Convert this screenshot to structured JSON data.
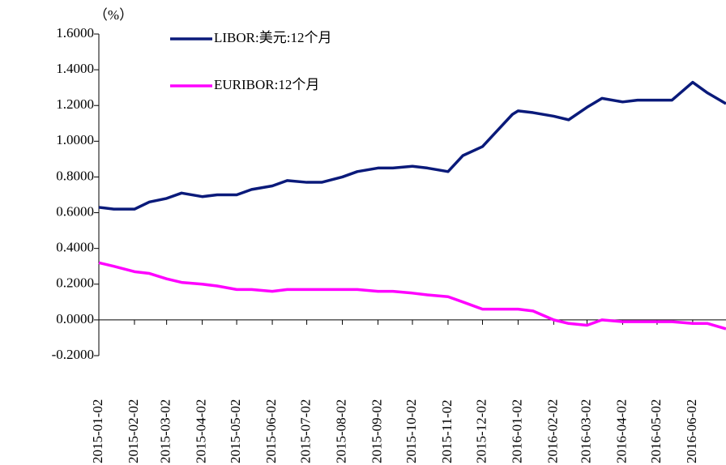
{
  "chart_data": {
    "type": "line",
    "y_label": "（%）",
    "x": [
      "2015-01-02",
      "2015-01-15",
      "2015-02-02",
      "2015-02-15",
      "2015-03-02",
      "2015-03-15",
      "2015-04-02",
      "2015-04-15",
      "2015-05-02",
      "2015-05-15",
      "2015-06-02",
      "2015-06-15",
      "2015-07-02",
      "2015-07-15",
      "2015-08-02",
      "2015-08-15",
      "2015-09-02",
      "2015-09-15",
      "2015-10-02",
      "2015-10-15",
      "2015-11-02",
      "2015-11-15",
      "2015-12-02",
      "2015-12-15",
      "2015-12-28",
      "2016-01-02",
      "2016-01-15",
      "2016-02-02",
      "2016-02-15",
      "2016-03-02",
      "2016-03-15",
      "2016-04-02",
      "2016-04-15",
      "2016-05-02",
      "2016-05-15",
      "2016-06-02",
      "2016-06-15",
      "2016-07-01"
    ],
    "series": [
      {
        "name": "LIBOR:美元:12个月",
        "color": "#0a1a7a",
        "values": [
          0.63,
          0.62,
          0.62,
          0.66,
          0.68,
          0.71,
          0.69,
          0.7,
          0.7,
          0.73,
          0.75,
          0.78,
          0.77,
          0.77,
          0.8,
          0.83,
          0.85,
          0.85,
          0.86,
          0.85,
          0.83,
          0.92,
          0.97,
          1.06,
          1.15,
          1.17,
          1.16,
          1.14,
          1.12,
          1.19,
          1.24,
          1.22,
          1.23,
          1.23,
          1.23,
          1.33,
          1.27,
          1.21
        ]
      },
      {
        "name": "EURIBOR:12个月",
        "color": "#ff00ff",
        "values": [
          0.32,
          0.3,
          0.27,
          0.26,
          0.23,
          0.21,
          0.2,
          0.19,
          0.17,
          0.17,
          0.16,
          0.17,
          0.17,
          0.17,
          0.17,
          0.17,
          0.16,
          0.16,
          0.15,
          0.14,
          0.13,
          0.1,
          0.06,
          0.06,
          0.06,
          0.06,
          0.05,
          0.0,
          -0.02,
          -0.03,
          0.0,
          -0.01,
          -0.01,
          -0.01,
          -0.01,
          -0.02,
          -0.02,
          -0.05
        ]
      }
    ],
    "xlim": [
      "2015-01-02",
      "2016-07-01"
    ],
    "xticks": [
      "2015-01-02",
      "2015-02-02",
      "2015-03-02",
      "2015-04-02",
      "2015-05-02",
      "2015-06-02",
      "2015-07-02",
      "2015-08-02",
      "2015-09-02",
      "2015-10-02",
      "2015-11-02",
      "2015-12-02",
      "2016-01-02",
      "2016-02-02",
      "2016-03-02",
      "2016-04-02",
      "2016-05-02",
      "2016-06-02"
    ],
    "ylim": [
      -0.2,
      1.6
    ],
    "yticks": [
      {
        "value": -0.2,
        "label": "-0.2000"
      },
      {
        "value": 0,
        "label": "0.0000"
      },
      {
        "value": 0.2,
        "label": "0.2000"
      },
      {
        "value": 0.4,
        "label": "0.4000"
      },
      {
        "value": 0.6,
        "label": "0.6000"
      },
      {
        "value": 0.8,
        "label": "0.8000"
      },
      {
        "value": 1.0,
        "label": "1.0000"
      },
      {
        "value": 1.2,
        "label": "1.2000"
      },
      {
        "value": 1.4,
        "label": "1.4000"
      },
      {
        "value": 1.6,
        "label": "1.6000"
      }
    ],
    "legend": "upper left"
  }
}
